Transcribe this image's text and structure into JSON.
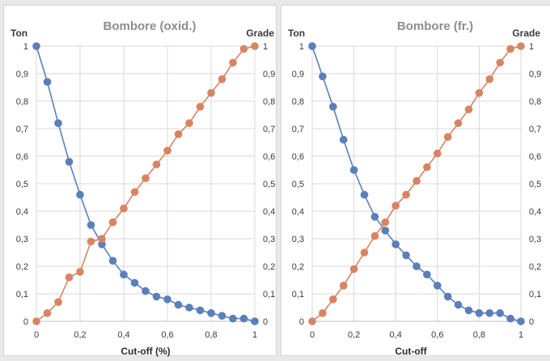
{
  "colors": {
    "ton": "#5b7fb8",
    "grade": "#d88463",
    "grid": "#d9d9d9",
    "axis": "#bfbfbf"
  },
  "chart_data": [
    {
      "type": "line",
      "title": "Bombore (oxid.)",
      "xlabel": "Cut-off (%)",
      "ylabel_left": "Ton",
      "ylabel_right": "Grade",
      "xlim": [
        0,
        1
      ],
      "ylim": [
        0,
        1
      ],
      "x_ticks": [
        "0",
        "0,2",
        "0,4",
        "0,6",
        "0,8",
        "1"
      ],
      "y_ticks": [
        "0",
        "0,1",
        "0,2",
        "0,3",
        "0,4",
        "0,5",
        "0,6",
        "0,7",
        "0,8",
        "0,9",
        "1"
      ],
      "grid": true,
      "series": [
        {
          "name": "Ton",
          "axis": "left",
          "x": [
            0,
            0.05,
            0.1,
            0.15,
            0.2,
            0.25,
            0.3,
            0.35,
            0.4,
            0.45,
            0.5,
            0.55,
            0.6,
            0.65,
            0.7,
            0.75,
            0.8,
            0.85,
            0.9,
            0.95,
            1.0
          ],
          "y": [
            1.0,
            0.87,
            0.72,
            0.58,
            0.46,
            0.35,
            0.28,
            0.22,
            0.17,
            0.14,
            0.11,
            0.09,
            0.08,
            0.06,
            0.05,
            0.04,
            0.03,
            0.02,
            0.01,
            0.01,
            0.0
          ]
        },
        {
          "name": "Grade",
          "axis": "right",
          "x": [
            0,
            0.05,
            0.1,
            0.15,
            0.2,
            0.25,
            0.3,
            0.35,
            0.4,
            0.45,
            0.5,
            0.55,
            0.6,
            0.65,
            0.7,
            0.75,
            0.8,
            0.85,
            0.9,
            0.95,
            1.0
          ],
          "y": [
            0.0,
            0.03,
            0.07,
            0.16,
            0.18,
            0.29,
            0.3,
            0.36,
            0.41,
            0.47,
            0.52,
            0.57,
            0.62,
            0.68,
            0.72,
            0.78,
            0.83,
            0.88,
            0.94,
            0.99,
            1.0
          ]
        }
      ]
    },
    {
      "type": "line",
      "title": "Bombore (fr.)",
      "xlabel": "Cut-off",
      "ylabel_left": "Ton",
      "ylabel_right": "Grade",
      "xlim": [
        0,
        1
      ],
      "ylim": [
        0,
        1
      ],
      "x_ticks": [
        "0",
        "0,2",
        "0,4",
        "0,6",
        "0,8",
        "1"
      ],
      "y_ticks": [
        "0",
        "0,1",
        "0,2",
        "0,3",
        "0,4",
        "0,5",
        "0,6",
        "0,7",
        "0,8",
        "0,9",
        "1"
      ],
      "grid": true,
      "series": [
        {
          "name": "Ton",
          "axis": "left",
          "x": [
            0,
            0.05,
            0.1,
            0.15,
            0.2,
            0.25,
            0.3,
            0.35,
            0.4,
            0.45,
            0.5,
            0.55,
            0.6,
            0.65,
            0.7,
            0.75,
            0.8,
            0.85,
            0.9,
            0.95,
            1.0
          ],
          "y": [
            1.0,
            0.89,
            0.78,
            0.66,
            0.55,
            0.46,
            0.38,
            0.33,
            0.28,
            0.24,
            0.2,
            0.17,
            0.13,
            0.09,
            0.06,
            0.04,
            0.03,
            0.03,
            0.03,
            0.01,
            0.0
          ]
        },
        {
          "name": "Grade",
          "axis": "right",
          "x": [
            0,
            0.05,
            0.1,
            0.15,
            0.2,
            0.25,
            0.3,
            0.35,
            0.4,
            0.45,
            0.5,
            0.55,
            0.6,
            0.65,
            0.7,
            0.75,
            0.8,
            0.85,
            0.9,
            0.95,
            1.0
          ],
          "y": [
            0.0,
            0.03,
            0.08,
            0.13,
            0.19,
            0.25,
            0.31,
            0.36,
            0.42,
            0.46,
            0.51,
            0.56,
            0.61,
            0.67,
            0.72,
            0.77,
            0.83,
            0.88,
            0.94,
            0.99,
            1.0
          ]
        }
      ]
    }
  ]
}
